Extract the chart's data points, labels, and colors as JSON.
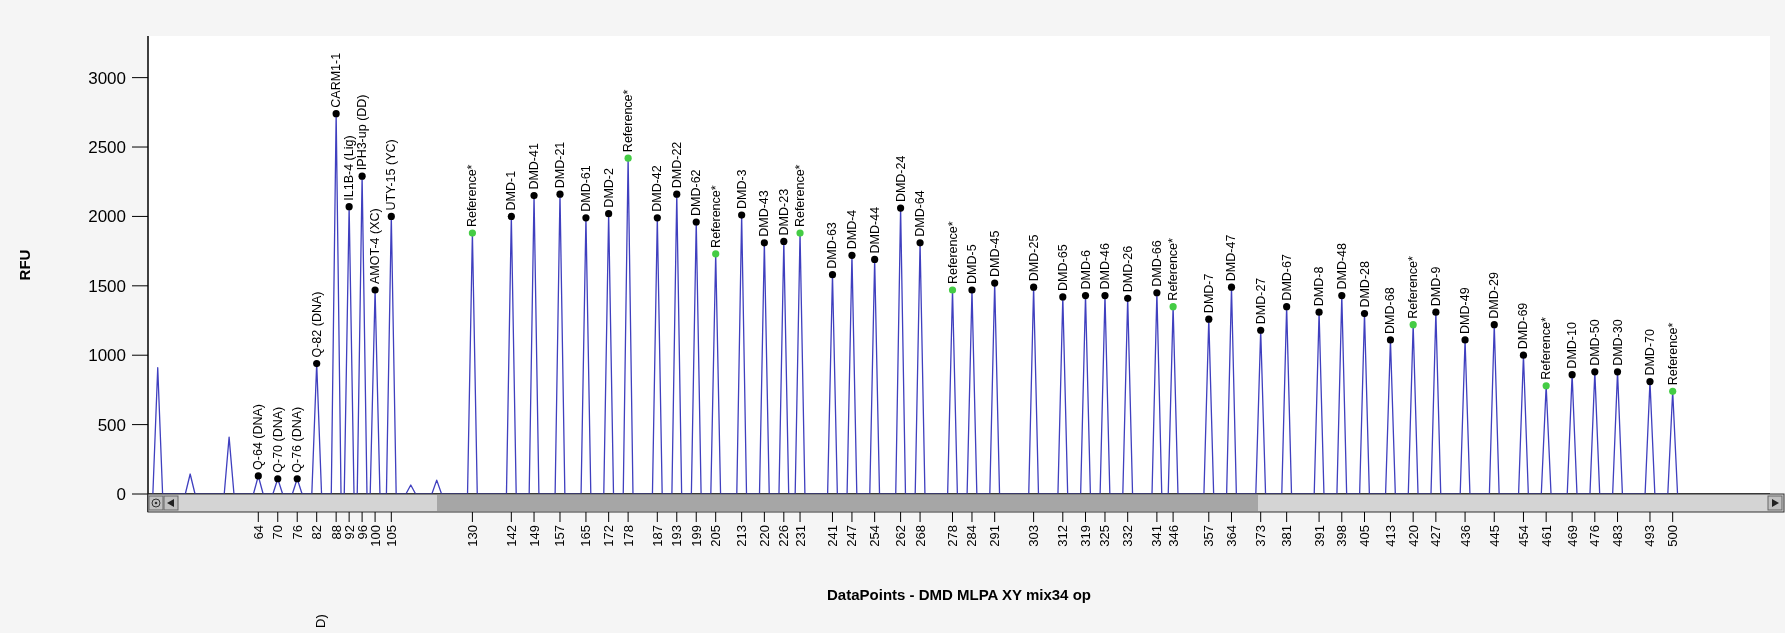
{
  "chart_data": {
    "type": "line",
    "xlabel": "DataPoints - DMD MLPA XY mix34 op",
    "ylabel": "RFU",
    "xlim": [
      30,
      530
    ],
    "ylim": [
      0,
      3300
    ],
    "xticks": [
      64,
      70,
      76,
      82,
      88,
      92,
      96,
      100,
      105,
      130,
      142,
      149,
      157,
      165,
      172,
      178,
      187,
      193,
      199,
      205,
      213,
      220,
      226,
      231,
      241,
      247,
      254,
      262,
      268,
      278,
      284,
      291,
      303,
      312,
      319,
      325,
      332,
      341,
      346,
      357,
      364,
      373,
      381,
      391,
      398,
      405,
      413,
      420,
      427,
      436,
      445,
      454,
      461,
      469,
      476,
      483,
      493,
      500
    ],
    "yticks": [
      0,
      500,
      1000,
      1500,
      2000,
      2500,
      3000
    ],
    "grid": false,
    "series": [
      {
        "type": "line",
        "color": "#3f3fbf",
        "marker": "none",
        "x": [
          31.5,
          33,
          34.5,
          41.5,
          43,
          44.5,
          53.5,
          55,
          56.5,
          62.5,
          64,
          65.5,
          68.5,
          70,
          71.5,
          74.5,
          76,
          77.5,
          80.5,
          82,
          83.5,
          86.5,
          88,
          89.5,
          90.5,
          92,
          93.5,
          94.5,
          96,
          97.5,
          98.5,
          100,
          101.5,
          103.5,
          105,
          106.5,
          109.5,
          111,
          112.5,
          117.5,
          119,
          120.5,
          128.5,
          130,
          131.5,
          140.5,
          142,
          143.5,
          147.5,
          149,
          150.5,
          155.5,
          157,
          158.5,
          163.5,
          165,
          166.5,
          170.5,
          172,
          173.5,
          176.5,
          178,
          179.5,
          185.5,
          187,
          188.5,
          191.5,
          193,
          194.5,
          197.5,
          199,
          200.5,
          203.5,
          205,
          206.5,
          211.5,
          213,
          214.5,
          218.5,
          220,
          221.5,
          224.5,
          226,
          227.5,
          229.5,
          231,
          232.5,
          239.5,
          241,
          242.5,
          245.5,
          247,
          248.5,
          252.5,
          254,
          255.5,
          260.5,
          262,
          263.5,
          266.5,
          268,
          269.5,
          276.5,
          278,
          279.5,
          282.5,
          284,
          285.5,
          289.5,
          291,
          292.5,
          301.5,
          303,
          304.5,
          310.5,
          312,
          313.5,
          317.5,
          319,
          320.5,
          323.5,
          325,
          326.5,
          330.5,
          332,
          333.5,
          339.5,
          341,
          342.5,
          344.5,
          346,
          347.5,
          355.5,
          357,
          358.5,
          362.5,
          364,
          365.5,
          371.5,
          373,
          374.5,
          379.5,
          381,
          382.5,
          389.5,
          391,
          392.5,
          396.5,
          398,
          399.5,
          403.5,
          405,
          406.5,
          411.5,
          413,
          414.5,
          418.5,
          420,
          421.5,
          425.5,
          427,
          428.5,
          434.5,
          436,
          437.5,
          443.5,
          445,
          446.5,
          452.5,
          454,
          455.5,
          459.5,
          461,
          462.5,
          467.5,
          469,
          470.5,
          474.5,
          476,
          477.5,
          481.5,
          483,
          484.5,
          491.5,
          493,
          494.5,
          498.5,
          500,
          501.5
        ],
        "values": [
          0,
          910,
          0,
          0,
          144,
          0,
          0,
          410,
          0,
          0,
          130,
          0,
          0,
          110,
          0,
          0,
          110,
          0,
          0,
          940,
          0,
          0,
          2740,
          0,
          0,
          2070,
          0,
          0,
          2290,
          0,
          0,
          1470,
          0,
          0,
          2000,
          0,
          0,
          65,
          0,
          0,
          100,
          0,
          0,
          1880,
          0,
          0,
          2000,
          0,
          0,
          2150,
          0,
          0,
          2160,
          0,
          0,
          1990,
          0,
          0,
          2020,
          0,
          0,
          2420,
          0,
          0,
          1990,
          0,
          0,
          2160,
          0,
          0,
          1960,
          0,
          0,
          1730,
          0,
          0,
          2010,
          0,
          0,
          1810,
          0,
          0,
          1820,
          0,
          0,
          1880,
          0,
          0,
          1580,
          0,
          0,
          1720,
          0,
          0,
          1690,
          0,
          0,
          2060,
          0,
          0,
          1810,
          0,
          0,
          1470,
          0,
          0,
          1470,
          0,
          0,
          1520,
          0,
          0,
          1490,
          0,
          0,
          1420,
          0,
          0,
          1430,
          0,
          0,
          1430,
          0,
          0,
          1410,
          0,
          0,
          1450,
          0,
          0,
          1350,
          0,
          0,
          1260,
          0,
          0,
          1490,
          0,
          0,
          1180,
          0,
          0,
          1350,
          0,
          0,
          1310,
          0,
          0,
          1430,
          0,
          0,
          1300,
          0,
          0,
          1110,
          0,
          0,
          1220,
          0,
          0,
          1310,
          0,
          0,
          1110,
          0,
          0,
          1220,
          0,
          0,
          1000,
          0,
          0,
          780,
          0,
          0,
          860,
          0,
          0,
          880,
          0,
          0,
          880,
          0,
          0,
          810,
          0,
          0,
          740,
          0
        ]
      },
      {
        "type": "scatter",
        "color": "#000000",
        "marker": "circle",
        "x": [
          64,
          70,
          76,
          82,
          88,
          92,
          96,
          100,
          105,
          142,
          149,
          157,
          165,
          172,
          187,
          193,
          199,
          213,
          220,
          226,
          241,
          247,
          254,
          262,
          268,
          284,
          291,
          303,
          312,
          319,
          325,
          332,
          341,
          357,
          364,
          373,
          381,
          391,
          398,
          405,
          413,
          427,
          436,
          445,
          454,
          469,
          476,
          483,
          493
        ],
        "values": [
          130,
          110,
          110,
          940,
          2740,
          2070,
          2290,
          1470,
          2000,
          2000,
          2150,
          2160,
          1990,
          2020,
          1990,
          2160,
          1960,
          2010,
          1810,
          1820,
          1580,
          1720,
          1690,
          2060,
          1810,
          1470,
          1520,
          1490,
          1420,
          1430,
          1430,
          1410,
          1450,
          1260,
          1490,
          1180,
          1350,
          1310,
          1430,
          1300,
          1110,
          1310,
          1110,
          1220,
          1000,
          860,
          880,
          880,
          810
        ]
      },
      {
        "type": "scatter",
        "color": "#44cc44",
        "marker": "circle",
        "x": [
          130,
          178,
          205,
          231,
          278,
          346,
          420,
          461,
          500
        ],
        "values": [
          1880,
          2420,
          1730,
          1880,
          1470,
          1350,
          1220,
          780,
          740
        ]
      }
    ],
    "annotations": [
      {
        "text": "Q-64 (DNA)",
        "x": 64,
        "y": 130
      },
      {
        "text": "Q-70 (DNA)",
        "x": 70,
        "y": 110
      },
      {
        "text": "Q-76 (DNA)",
        "x": 76,
        "y": 110
      },
      {
        "text": "Q-82 (DNA)",
        "x": 82,
        "y": 940
      },
      {
        "text": "CARM1-1",
        "x": 88,
        "y": 2740
      },
      {
        "text": "IL1B-4 (Lig)",
        "x": 92,
        "y": 2070
      },
      {
        "text": "IPH3-up (DD)",
        "x": 96,
        "y": 2290
      },
      {
        "text": "AMOT-4 (XC)",
        "x": 100,
        "y": 1470
      },
      {
        "text": "UTY-15 (YC)",
        "x": 105,
        "y": 2000
      },
      {
        "text": "Reference*",
        "x": 130,
        "y": 1880
      },
      {
        "text": "DMD-1",
        "x": 142,
        "y": 2000
      },
      {
        "text": "DMD-41",
        "x": 149,
        "y": 2150
      },
      {
        "text": "DMD-21",
        "x": 157,
        "y": 2160
      },
      {
        "text": "DMD-61",
        "x": 165,
        "y": 1990
      },
      {
        "text": "DMD-2",
        "x": 172,
        "y": 2020
      },
      {
        "text": "Reference*",
        "x": 178,
        "y": 2420
      },
      {
        "text": "DMD-42",
        "x": 187,
        "y": 1990
      },
      {
        "text": "DMD-22",
        "x": 193,
        "y": 2160
      },
      {
        "text": "DMD-62",
        "x": 199,
        "y": 1960
      },
      {
        "text": "Reference*",
        "x": 205,
        "y": 1730
      },
      {
        "text": "DMD-3",
        "x": 213,
        "y": 2010
      },
      {
        "text": "DMD-43",
        "x": 220,
        "y": 1810
      },
      {
        "text": "DMD-23",
        "x": 226,
        "y": 1820
      },
      {
        "text": "Reference*",
        "x": 231,
        "y": 1880
      },
      {
        "text": "DMD-63",
        "x": 241,
        "y": 1580
      },
      {
        "text": "DMD-4",
        "x": 247,
        "y": 1720
      },
      {
        "text": "DMD-44",
        "x": 254,
        "y": 1690
      },
      {
        "text": "DMD-24",
        "x": 262,
        "y": 2060
      },
      {
        "text": "DMD-64",
        "x": 268,
        "y": 1810
      },
      {
        "text": "Reference*",
        "x": 278,
        "y": 1470
      },
      {
        "text": "DMD-5",
        "x": 284,
        "y": 1470
      },
      {
        "text": "DMD-45",
        "x": 291,
        "y": 1520
      },
      {
        "text": "DMD-25",
        "x": 303,
        "y": 1490
      },
      {
        "text": "DMD-65",
        "x": 312,
        "y": 1420
      },
      {
        "text": "DMD-6",
        "x": 319,
        "y": 1430
      },
      {
        "text": "DMD-46",
        "x": 325,
        "y": 1430
      },
      {
        "text": "DMD-26",
        "x": 332,
        "y": 1410
      },
      {
        "text": "DMD-66",
        "x": 341,
        "y": 1450
      },
      {
        "text": "Reference*",
        "x": 346,
        "y": 1350
      },
      {
        "text": "DMD-7",
        "x": 357,
        "y": 1260
      },
      {
        "text": "DMD-47",
        "x": 364,
        "y": 1490
      },
      {
        "text": "DMD-27",
        "x": 373,
        "y": 1180
      },
      {
        "text": "DMD-67",
        "x": 381,
        "y": 1350
      },
      {
        "text": "DMD-8",
        "x": 391,
        "y": 1310
      },
      {
        "text": "DMD-48",
        "x": 398,
        "y": 1430
      },
      {
        "text": "DMD-28",
        "x": 405,
        "y": 1300
      },
      {
        "text": "DMD-68",
        "x": 413,
        "y": 1110
      },
      {
        "text": "Reference*",
        "x": 420,
        "y": 1220
      },
      {
        "text": "DMD-9",
        "x": 427,
        "y": 1310
      },
      {
        "text": "DMD-49",
        "x": 436,
        "y": 1110
      },
      {
        "text": "DMD-29",
        "x": 445,
        "y": 1220
      },
      {
        "text": "DMD-69",
        "x": 454,
        "y": 1000
      },
      {
        "text": "Reference*",
        "x": 461,
        "y": 780
      },
      {
        "text": "DMD-10",
        "x": 469,
        "y": 860
      },
      {
        "text": "DMD-50",
        "x": 476,
        "y": 880
      },
      {
        "text": "DMD-30",
        "x": 483,
        "y": 880
      },
      {
        "text": "DMD-70",
        "x": 493,
        "y": 810
      },
      {
        "text": "Reference*",
        "x": 500,
        "y": 740
      },
      "D)"
    ]
  }
}
